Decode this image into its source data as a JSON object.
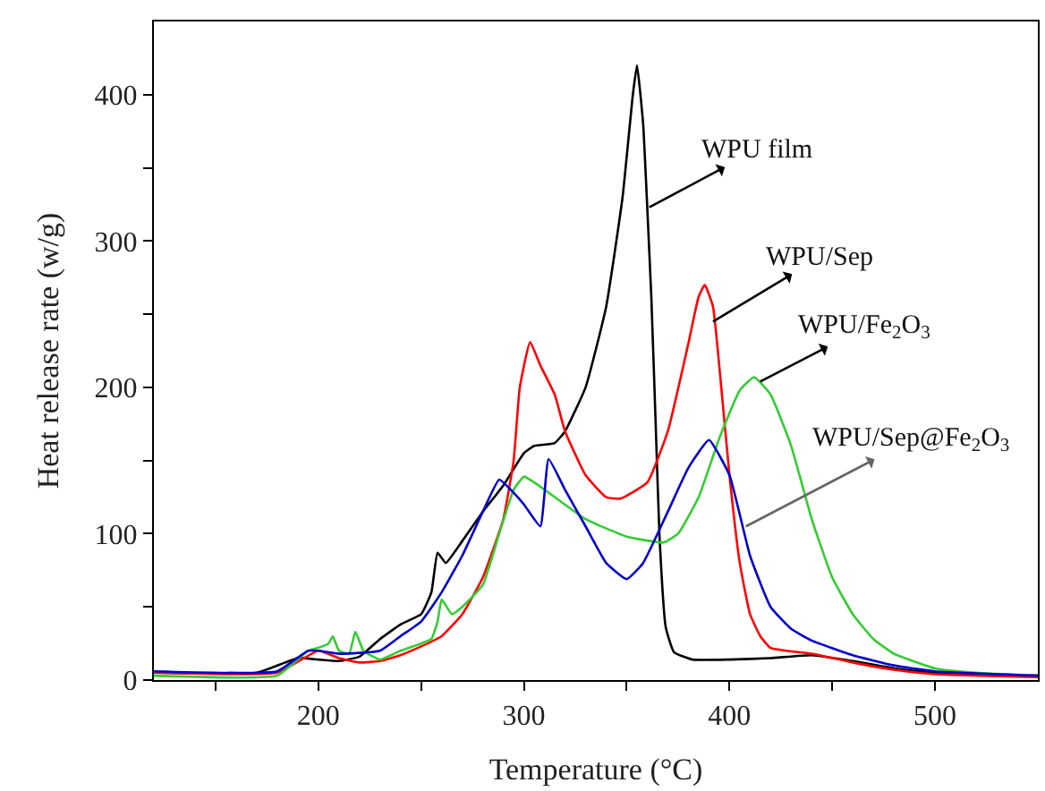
{
  "chart_data": {
    "type": "line",
    "xlabel": "Temperature (°C)",
    "ylabel": "Heat release rate (w/g)",
    "xlim": [
      120,
      550
    ],
    "xticks": [
      {
        "value": 150,
        "label": null
      },
      200,
      {
        "value": 250,
        "label": null
      },
      300,
      {
        "value": 350,
        "label": null
      },
      400,
      {
        "value": 450,
        "label": null
      },
      500
    ],
    "ylim": [
      0,
      450
    ],
    "yticks": [
      0,
      {
        "value": 50,
        "label": null
      },
      100,
      {
        "value": 150,
        "label": null
      },
      200,
      {
        "value": 250,
        "label": null
      },
      300,
      {
        "value": 350,
        "label": null
      },
      400
    ],
    "marker": "none",
    "line_style": "solid",
    "series": [
      {
        "color": "#000000",
        "x": [
          120,
          170,
          190,
          200,
          210,
          220,
          230,
          240,
          250,
          255,
          258,
          262,
          270,
          280,
          290,
          300,
          305,
          315,
          320,
          330,
          340,
          348,
          353,
          355,
          358,
          360,
          362,
          364,
          366,
          369,
          373,
          382,
          400,
          420,
          440,
          460,
          480,
          500,
          550
        ],
        "values": [
          5,
          5,
          15,
          14,
          13,
          16,
          28,
          38,
          45,
          60,
          87,
          80,
          95,
          115,
          133,
          155,
          160,
          162,
          170,
          200,
          255,
          330,
          400,
          420,
          380,
          323,
          261,
          179,
          97,
          36,
          19,
          14,
          14,
          15,
          17,
          13,
          8,
          5,
          3
        ]
      },
      {
        "color": "#ff0000",
        "x": [
          120,
          180,
          200,
          210,
          220,
          230,
          240,
          250,
          260,
          270,
          280,
          290,
          295,
          298,
          303,
          308,
          315,
          320,
          330,
          340,
          347,
          360,
          370,
          380,
          385,
          388,
          392,
          396,
          400,
          405,
          410,
          415,
          420,
          440,
          460,
          480,
          500,
          550
        ],
        "values": [
          5,
          5,
          20,
          15,
          12,
          13,
          17,
          23,
          30,
          45,
          70,
          110,
          150,
          200,
          231,
          215,
          195,
          170,
          140,
          125,
          124,
          135,
          170,
          230,
          262,
          270,
          255,
          200,
          140,
          80,
          45,
          30,
          22,
          18,
          12,
          7,
          4,
          2
        ]
      },
      {
        "color": "#33cc33",
        "x": [
          120,
          180,
          195,
          200,
          205,
          207,
          210,
          215,
          218,
          222,
          230,
          240,
          250,
          255,
          258,
          260,
          265,
          270,
          280,
          288,
          295,
          300,
          305,
          315,
          330,
          350,
          368,
          375,
          385,
          395,
          405,
          412,
          420,
          430,
          440,
          450,
          460,
          470,
          480,
          500,
          520,
          550
        ],
        "values": [
          3,
          3,
          20,
          22,
          25,
          30,
          20,
          18,
          33,
          20,
          14,
          20,
          25,
          28,
          40,
          55,
          45,
          50,
          65,
          100,
          130,
          139,
          135,
          125,
          110,
          98,
          94,
          100,
          125,
          165,
          198,
          207,
          195,
          160,
          110,
          70,
          45,
          28,
          18,
          8,
          5,
          3
        ]
      },
      {
        "color": "#0000cc",
        "x": [
          120,
          180,
          195,
          200,
          210,
          230,
          240,
          250,
          260,
          270,
          280,
          288,
          295,
          300,
          308,
          312,
          320,
          330,
          340,
          350,
          358,
          370,
          380,
          390,
          400,
          410,
          420,
          430,
          440,
          460,
          480,
          500,
          550
        ],
        "values": [
          6,
          6,
          20,
          20,
          18,
          20,
          30,
          40,
          60,
          85,
          115,
          137,
          128,
          120,
          105,
          151,
          130,
          105,
          80,
          69,
          80,
          115,
          145,
          164,
          140,
          85,
          50,
          35,
          27,
          17,
          10,
          6,
          3
        ]
      }
    ],
    "annotations": [
      {
        "text": "WPU film",
        "x": 361,
        "y": 323
      },
      {
        "text": "WPU/Sep",
        "x": 392,
        "y": 245
      },
      {
        "text": "WPU/Fe$_{2}$O$_{3}$",
        "x": 415,
        "y": 204
      },
      {
        "text": "WPU/Sep@Fe$_{2}$O$_{3}$",
        "x": 408,
        "y": 105
      }
    ]
  }
}
